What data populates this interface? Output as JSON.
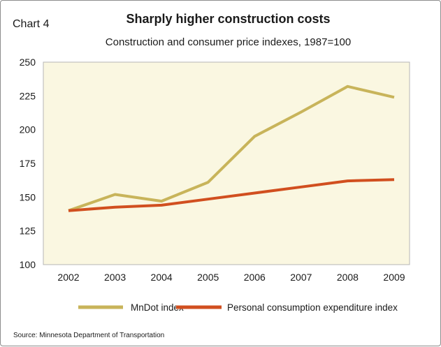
{
  "figure_label": "Chart 4",
  "colors": {
    "plot_background": "#faf7e1",
    "mndot": "#c8b45a",
    "pce": "#d14f1f"
  },
  "source": "Source: Minnesota Department of Transportation",
  "chart_data": {
    "type": "line",
    "title": "Sharply higher construction costs",
    "subtitle": "Construction and consumer price indexes, 1987=100",
    "xlabel": "",
    "ylabel": "",
    "categories": [
      "2002",
      "2003",
      "2004",
      "2005",
      "2006",
      "2007",
      "2008",
      "2009"
    ],
    "ylim": [
      100,
      250
    ],
    "yticks": [
      100,
      125,
      150,
      175,
      200,
      225,
      250
    ],
    "grid": false,
    "legend_placement": "bottom",
    "series": [
      {
        "name": "MnDot index",
        "color": "#c8b45a",
        "values": [
          140,
          152,
          147,
          161,
          195,
          213,
          232,
          224
        ]
      },
      {
        "name": "Personal consumption expenditure index",
        "color": "#d14f1f",
        "values": [
          140,
          142.5,
          144,
          148.5,
          153,
          157.5,
          162,
          163
        ]
      }
    ]
  }
}
